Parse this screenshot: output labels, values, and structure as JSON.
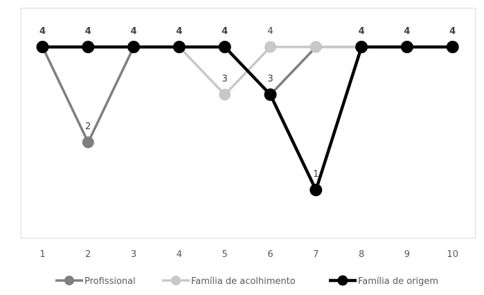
{
  "chart_data": {
    "type": "line",
    "title": "",
    "xlabel": "",
    "ylabel": "",
    "x": [
      1,
      2,
      3,
      4,
      5,
      6,
      7,
      8,
      9,
      10
    ],
    "x_tick_labels": [
      "1",
      "2",
      "3",
      "4",
      "5",
      "6",
      "7",
      "8",
      "9",
      "10"
    ],
    "ylim": [
      0,
      4
    ],
    "y_axis_visible": false,
    "grid": false,
    "legend_position": "bottom",
    "series": [
      {
        "name": "Profissional",
        "values": [
          4,
          2,
          4,
          4,
          4,
          3,
          4,
          4,
          4,
          4
        ],
        "color": "#7f7f7f",
        "data_labels": {
          "1": "2",
          "5": "3"
        }
      },
      {
        "name": "Família de acolhimento",
        "values": [
          4,
          4,
          4,
          4,
          3,
          4,
          4,
          4,
          4,
          4
        ],
        "color": "#c8c8c8",
        "data_labels": {
          "4": "3",
          "5": "4"
        }
      },
      {
        "name": "Família de origem",
        "values": [
          4,
          4,
          4,
          4,
          4,
          3,
          1,
          4,
          4,
          4
        ],
        "color": "#000000",
        "data_labels": {
          "0": "4",
          "1": "4",
          "2": "4",
          "3": "4",
          "4": "4",
          "6": "1",
          "7": "4",
          "8": "4",
          "9": "4"
        },
        "bold_labels": true
      }
    ]
  }
}
